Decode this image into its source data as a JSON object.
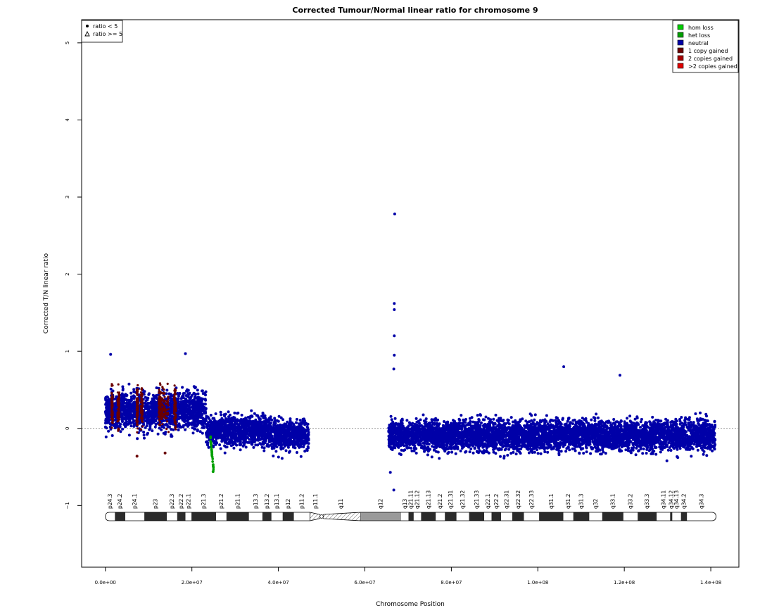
{
  "chart_data": {
    "type": "scatter",
    "title": "Corrected Tumour/Normal linear ratio for chromosome  9",
    "xlabel": "Chromosome Position",
    "ylabel": "Corrected T/N linear ratio",
    "xlim": [
      -5500000,
      146500000
    ],
    "ylim": [
      -1.8,
      5.3
    ],
    "x_ticks": [
      0,
      20000000,
      40000000,
      60000000,
      80000000,
      100000000,
      120000000,
      140000000
    ],
    "x_tick_labels": [
      "0.0e+00",
      "2.0e+07",
      "4.0e+07",
      "6.0e+07",
      "8.0e+07",
      "1.0e+08",
      "1.2e+08",
      "1.4e+08"
    ],
    "y_ticks": [
      -1,
      0,
      1,
      2,
      3,
      4,
      5
    ],
    "y_tick_labels": [
      "−1",
      "0",
      "1",
      "2",
      "3",
      "4",
      "5"
    ],
    "reference_line_y": 0,
    "shape_legend": {
      "placement": "top-left",
      "items": [
        {
          "symbol": "dot",
          "label": "ratio < 5"
        },
        {
          "symbol": "triangle",
          "label": "ratio >= 5"
        }
      ]
    },
    "color_legend": {
      "placement": "top-right",
      "items": [
        {
          "label": "hom loss",
          "color": "#00d000"
        },
        {
          "label": "het loss",
          "color": "#00a000"
        },
        {
          "label": "neutral",
          "color": "#0000a8"
        },
        {
          "label": "1 copy gained",
          "color": "#6b0000"
        },
        {
          "label": "2 copies gained",
          "color": "#a50000"
        },
        {
          "label": ">2 copies gained",
          "color": "#e00000"
        }
      ]
    },
    "segments": [
      {
        "state": "neutral",
        "x_start": 0,
        "x_end": 23300000,
        "mean": 0.23,
        "spread": 0.23
      },
      {
        "state": "neutral",
        "x_start": 23300000,
        "x_end": 38500000,
        "mean": -0.03,
        "spread": 0.19
      },
      {
        "state": "neutral",
        "x_start": 38500000,
        "x_end": 47000000,
        "mean": -0.09,
        "spread": 0.19
      },
      {
        "state": "neutral",
        "x_start": 65500000,
        "x_end": 141000000,
        "mean": -0.09,
        "spread": 0.19
      }
    ],
    "gain_regions": [
      {
        "state": "1 copy gained",
        "x_start": 1400000,
        "x_end": 1700000
      },
      {
        "state": "1 copy gained",
        "x_start": 2800000,
        "x_end": 3200000
      },
      {
        "state": "1 copy gained",
        "x_start": 7200000,
        "x_end": 7500000
      },
      {
        "state": "1 copy gained",
        "x_start": 8200000,
        "x_end": 8600000
      },
      {
        "state": "1 copy gained",
        "x_start": 12300000,
        "x_end": 12800000
      },
      {
        "state": "1 copy gained",
        "x_start": 13000000,
        "x_end": 14600000
      },
      {
        "state": "1 copy gained",
        "x_start": 15900000,
        "x_end": 16300000
      }
    ],
    "loss_region": {
      "state": "het loss",
      "x_start": 24300000,
      "x_end": 25000000
    },
    "outliers": [
      {
        "x": 66900000,
        "y": 2.78,
        "state": "neutral"
      },
      {
        "x": 66800000,
        "y": 1.62,
        "state": "neutral"
      },
      {
        "x": 66800000,
        "y": 1.54,
        "state": "neutral"
      },
      {
        "x": 66800000,
        "y": 1.2,
        "state": "neutral"
      },
      {
        "x": 66800000,
        "y": 0.95,
        "state": "neutral"
      },
      {
        "x": 66700000,
        "y": 0.77,
        "state": "neutral"
      },
      {
        "x": 66700000,
        "y": -0.8,
        "state": "neutral"
      },
      {
        "x": 65900000,
        "y": -0.57,
        "state": "neutral"
      },
      {
        "x": 106000000,
        "y": 0.8,
        "state": "neutral"
      },
      {
        "x": 119000000,
        "y": 0.69,
        "state": "neutral"
      },
      {
        "x": 1200000,
        "y": 0.96,
        "state": "neutral"
      },
      {
        "x": 18500000,
        "y": 0.97,
        "state": "neutral"
      },
      {
        "x": 7300000,
        "y": -0.36,
        "state": "1 copy gained"
      },
      {
        "x": 13800000,
        "y": -0.32,
        "state": "1 copy gained"
      },
      {
        "x": 24900000,
        "y": -0.56,
        "state": "het loss"
      }
    ],
    "ideogram": {
      "centromere_x": 50000000,
      "bands": [
        {
          "name": "p24.3",
          "start": 0,
          "end": 2200000,
          "stain": "gneg"
        },
        {
          "name": "p24.2",
          "start": 2200000,
          "end": 4600000,
          "stain": "gpos"
        },
        {
          "name": "p24.1",
          "start": 4600000,
          "end": 9000000,
          "stain": "gneg"
        },
        {
          "name": "p23",
          "start": 9000000,
          "end": 14200000,
          "stain": "gpos"
        },
        {
          "name": "p22.3",
          "start": 14200000,
          "end": 16600000,
          "stain": "gneg"
        },
        {
          "name": "p22.2",
          "start": 16600000,
          "end": 18500000,
          "stain": "gpos"
        },
        {
          "name": "p22.1",
          "start": 18500000,
          "end": 19900000,
          "stain": "gneg"
        },
        {
          "name": "p21.3",
          "start": 19900000,
          "end": 25600000,
          "stain": "gpos"
        },
        {
          "name": "p21.2",
          "start": 25600000,
          "end": 28000000,
          "stain": "gneg"
        },
        {
          "name": "p21.1",
          "start": 28000000,
          "end": 33200000,
          "stain": "gpos"
        },
        {
          "name": "p13.3",
          "start": 33200000,
          "end": 36300000,
          "stain": "gneg"
        },
        {
          "name": "p13.2",
          "start": 36300000,
          "end": 38400000,
          "stain": "gpos"
        },
        {
          "name": "p13.1",
          "start": 38400000,
          "end": 41000000,
          "stain": "gneg"
        },
        {
          "name": "p12",
          "start": 41000000,
          "end": 43600000,
          "stain": "gpos"
        },
        {
          "name": "p11.2",
          "start": 43600000,
          "end": 47300000,
          "stain": "gneg"
        },
        {
          "name": "p11.1",
          "start": 47300000,
          "end": 50000000,
          "stain": "acen"
        },
        {
          "name": "q11",
          "start": 50000000,
          "end": 59000000,
          "stain": "acen"
        },
        {
          "name": "q12",
          "start": 59000000,
          "end": 68400000,
          "stain": "gvar"
        },
        {
          "name": "q13",
          "start": 68400000,
          "end": 70100000,
          "stain": "gneg"
        },
        {
          "name": "q21.11",
          "start": 70100000,
          "end": 71300000,
          "stain": "gpos"
        },
        {
          "name": "q21.12",
          "start": 71300000,
          "end": 73000000,
          "stain": "gneg"
        },
        {
          "name": "q21.13",
          "start": 73000000,
          "end": 76400000,
          "stain": "gpos"
        },
        {
          "name": "q21.2",
          "start": 76400000,
          "end": 78500000,
          "stain": "gneg"
        },
        {
          "name": "q21.31",
          "start": 78500000,
          "end": 81200000,
          "stain": "gpos"
        },
        {
          "name": "q21.32",
          "start": 81200000,
          "end": 84100000,
          "stain": "gneg"
        },
        {
          "name": "q21.33",
          "start": 84100000,
          "end": 87600000,
          "stain": "gpos"
        },
        {
          "name": "q22.1",
          "start": 87600000,
          "end": 89300000,
          "stain": "gneg"
        },
        {
          "name": "q22.2",
          "start": 89300000,
          "end": 91500000,
          "stain": "gpos"
        },
        {
          "name": "q22.31",
          "start": 91500000,
          "end": 94100000,
          "stain": "gneg"
        },
        {
          "name": "q22.32",
          "start": 94100000,
          "end": 96800000,
          "stain": "gpos"
        },
        {
          "name": "q22.33",
          "start": 96800000,
          "end": 100300000,
          "stain": "gneg"
        },
        {
          "name": "q31.1",
          "start": 100300000,
          "end": 105900000,
          "stain": "gpos"
        },
        {
          "name": "q31.2",
          "start": 105900000,
          "end": 108200000,
          "stain": "gneg"
        },
        {
          "name": "q31.3",
          "start": 108200000,
          "end": 111900000,
          "stain": "gpos"
        },
        {
          "name": "q32",
          "start": 111900000,
          "end": 114900000,
          "stain": "gneg"
        },
        {
          "name": "q33.1",
          "start": 114900000,
          "end": 119800000,
          "stain": "gpos"
        },
        {
          "name": "q33.2",
          "start": 119800000,
          "end": 123100000,
          "stain": "gneg"
        },
        {
          "name": "q33.3",
          "start": 123100000,
          "end": 127500000,
          "stain": "gpos"
        },
        {
          "name": "q34.11",
          "start": 127500000,
          "end": 130600000,
          "stain": "gneg"
        },
        {
          "name": "q34.12",
          "start": 130600000,
          "end": 131100000,
          "stain": "gpos"
        },
        {
          "name": "q34.13",
          "start": 131100000,
          "end": 133100000,
          "stain": "gneg"
        },
        {
          "name": "q34.2",
          "start": 133100000,
          "end": 134500000,
          "stain": "gpos"
        },
        {
          "name": "q34.3",
          "start": 134500000,
          "end": 141200000,
          "stain": "gneg"
        }
      ]
    }
  }
}
